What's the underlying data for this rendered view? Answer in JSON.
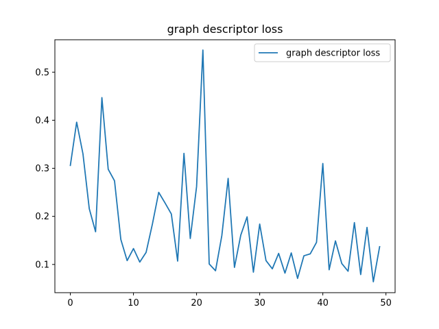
{
  "chart_data": {
    "type": "line",
    "title": "graph descriptor loss",
    "xlabel": "",
    "ylabel": "",
    "xlim": [
      -2.45,
      51.45
    ],
    "ylim": [
      0.0413,
      0.5674
    ],
    "xticks": [
      0,
      10,
      20,
      30,
      40,
      50
    ],
    "yticks": [
      0.1,
      0.2,
      0.3,
      0.4,
      0.5
    ],
    "xtick_labels": [
      "0",
      "10",
      "20",
      "30",
      "40",
      "50"
    ],
    "ytick_labels": [
      "0.1",
      "0.2",
      "0.3",
      "0.4",
      "0.5"
    ],
    "grid": false,
    "legend_position": "top-right",
    "series": [
      {
        "name": "graph descriptor loss",
        "color": "#1f77b4",
        "x": [
          0,
          1,
          2,
          3,
          4,
          5,
          6,
          7,
          8,
          9,
          10,
          11,
          12,
          13,
          14,
          15,
          16,
          17,
          18,
          19,
          20,
          21,
          22,
          23,
          24,
          25,
          26,
          27,
          28,
          29,
          30,
          31,
          32,
          33,
          34,
          35,
          36,
          37,
          38,
          39,
          40,
          41,
          42,
          43,
          44,
          45,
          46,
          47,
          48,
          49
        ],
        "values": [
          0.306,
          0.396,
          0.33,
          0.216,
          0.168,
          0.447,
          0.298,
          0.274,
          0.152,
          0.108,
          0.133,
          0.105,
          0.125,
          0.184,
          0.25,
          0.228,
          0.205,
          0.107,
          0.331,
          0.154,
          0.262,
          0.546,
          0.101,
          0.087,
          0.16,
          0.279,
          0.094,
          0.161,
          0.199,
          0.084,
          0.184,
          0.108,
          0.091,
          0.123,
          0.082,
          0.124,
          0.071,
          0.118,
          0.122,
          0.146,
          0.31,
          0.089,
          0.149,
          0.102,
          0.086,
          0.187,
          0.079,
          0.177,
          0.064,
          0.137
        ]
      }
    ]
  }
}
